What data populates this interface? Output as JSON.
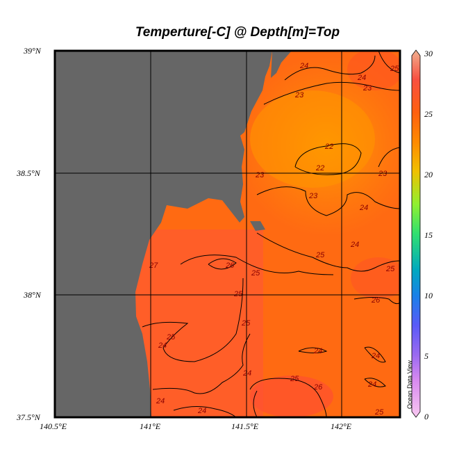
{
  "title": "Temperture[-C] @ Depth[m]=Top",
  "y_axis": [
    "39°N",
    "38.5°N",
    "38°N",
    "37.5°N"
  ],
  "x_axis": [
    "140.5°E",
    "141°E",
    "141.5°E",
    "142°E"
  ],
  "colorbar": {
    "ticks": [
      "30",
      "25",
      "20",
      "15",
      "10",
      "5",
      "0"
    ],
    "range": [
      0,
      30
    ]
  },
  "watermark": "Ocean Data View",
  "contour_labels": [
    "24",
    "23",
    "24",
    "23",
    "25",
    "22",
    "22",
    "23",
    "23",
    "23",
    "24",
    "24",
    "25",
    "27",
    "26",
    "25",
    "25",
    "26",
    "25",
    "25",
    "25",
    "24",
    "24",
    "25",
    "26",
    "24",
    "24",
    "24",
    "24",
    "25",
    "24"
  ],
  "colors": {
    "land": "#666666",
    "ocean_warm": "#ff5a2a",
    "ocean_mid": "#ff7a10",
    "ocean_cool": "#ff9a00"
  }
}
